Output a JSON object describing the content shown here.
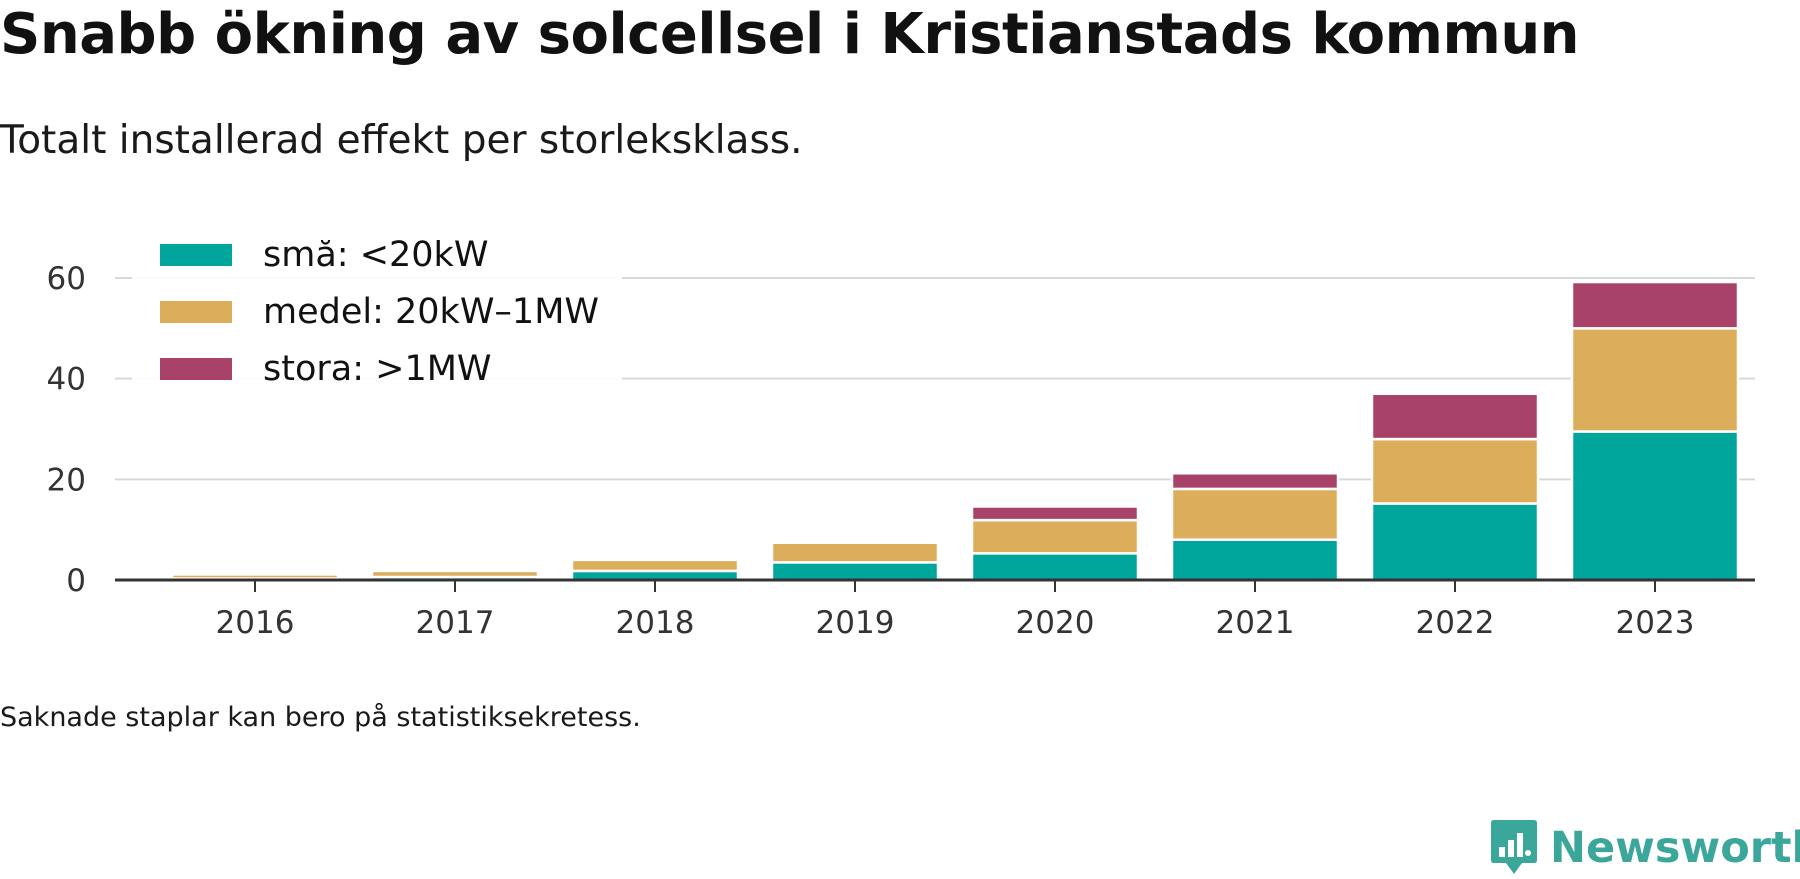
{
  "title": "Snabb ökning av solcellsel i Kristianstads kommun",
  "subtitle": "Totalt installerad effekt per storleksklass.",
  "footnote": "Saknade staplar kan bero på statistiksekretess.",
  "brand": {
    "name": "Newsworthy",
    "icon": "newsworthy-logo-icon",
    "color": "#3aa79a"
  },
  "chart_data": {
    "type": "bar",
    "stacked": true,
    "categories": [
      "2016",
      "2017",
      "2018",
      "2019",
      "2020",
      "2021",
      "2022",
      "2023"
    ],
    "series": [
      {
        "name": "små: <20kW",
        "color": "#00a59b",
        "values": [
          0.3,
          0.6,
          1.8,
          3.5,
          5.3,
          8.0,
          15.2,
          29.5
        ]
      },
      {
        "name": "medel: 20kW–1MW",
        "color": "#dcad5b",
        "values": [
          0.8,
          1.2,
          2.2,
          3.9,
          6.6,
          10.1,
          12.8,
          20.5
        ]
      },
      {
        "name": "stora: >1MW",
        "color": "#a84268",
        "values": [
          0,
          0,
          0,
          0,
          2.7,
          3.1,
          9.0,
          9.2
        ]
      }
    ],
    "yticks": [
      0,
      20,
      40,
      60
    ],
    "ylim": [
      0,
      60
    ],
    "grid": true,
    "legend_position": "top-left"
  }
}
